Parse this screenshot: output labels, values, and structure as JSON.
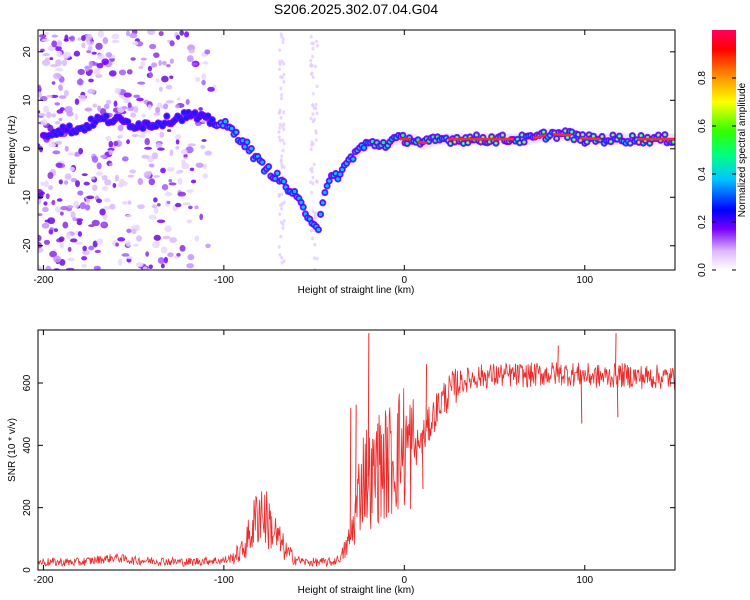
{
  "title": "S206.2025.302.07.04.G04",
  "chart_data": [
    {
      "type": "heatmap",
      "xlabel": "Height of straight line (km)",
      "ylabel": "Frequency (Hz)",
      "xlim": [
        -203,
        150
      ],
      "ylim": [
        -25,
        24.5
      ],
      "xticks": [
        -200,
        -100,
        0,
        100
      ],
      "yticks": [
        -20,
        -10,
        0,
        10,
        20
      ],
      "ridge": {
        "x": [
          -200,
          -190,
          -180,
          -170,
          -160,
          -150,
          -140,
          -130,
          -120,
          -110,
          -100,
          -90,
          -80,
          -70,
          -60,
          -55,
          -50,
          -48,
          -45,
          -40,
          -35,
          -30,
          -25,
          -20,
          -15,
          -10,
          -5,
          0,
          5,
          10,
          20,
          30,
          40,
          50,
          60,
          70,
          80,
          90,
          100,
          110,
          120,
          130,
          140,
          150
        ],
        "y": [
          3,
          4,
          4,
          6,
          6,
          5,
          5,
          6,
          7,
          6,
          5,
          2,
          -3,
          -6,
          -10,
          -13,
          -15,
          -17,
          -10,
          -6,
          -5,
          -2,
          0,
          1,
          1,
          1,
          2,
          2,
          2,
          1,
          2,
          2,
          2,
          2,
          2,
          2,
          3,
          3,
          2,
          2,
          2,
          2,
          2,
          2
        ]
      },
      "noise_region_km": [
        -203,
        -105
      ],
      "colorbar": {
        "label": "Normalized spectral amplitude",
        "range": [
          0,
          1
        ],
        "ticks": [
          "0.0",
          "0.2",
          "0.4",
          "0.6",
          "0.8"
        ]
      }
    },
    {
      "type": "line",
      "xlabel": "Height of straight line (km)",
      "ylabel": "SNR (10 * v/v)",
      "xlim": [
        -203,
        150
      ],
      "ylim": [
        0,
        770
      ],
      "xticks": [
        -200,
        -100,
        0,
        100
      ],
      "yticks": [
        0,
        200,
        400,
        600
      ],
      "color": "#ee2b2b",
      "series": [
        {
          "name": "SNR",
          "x": [
            -203,
            -180,
            -160,
            -150,
            -140,
            -120,
            -110,
            -100,
            -95,
            -90,
            -85,
            -80,
            -75,
            -70,
            -65,
            -60,
            -55,
            -50,
            -45,
            -40,
            -35,
            -30,
            -28,
            -25,
            -22,
            -20,
            -18,
            -15,
            -10,
            -5,
            0,
            5,
            10,
            15,
            20,
            25,
            30,
            40,
            50,
            60,
            70,
            80,
            90,
            100,
            110,
            120,
            130,
            140,
            150
          ],
          "y": [
            25,
            25,
            40,
            30,
            30,
            25,
            30,
            30,
            40,
            60,
            120,
            200,
            150,
            100,
            55,
            35,
            25,
            25,
            25,
            25,
            40,
            100,
            150,
            250,
            320,
            300,
            280,
            330,
            340,
            370,
            400,
            380,
            420,
            480,
            540,
            570,
            600,
            620,
            625,
            625,
            625,
            630,
            630,
            625,
            620,
            625,
            620,
            620,
            615
          ],
          "spikes": [
            {
              "x": 117,
              "y": 760
            },
            {
              "x": 85,
              "y": 720
            },
            {
              "x": 98,
              "y": 470
            },
            {
              "x": 118,
              "y": 490
            },
            {
              "x": -20,
              "y": 760
            },
            {
              "x": -30,
              "y": 520
            },
            {
              "x": -27,
              "y": 530
            },
            {
              "x": 12,
              "y": 660
            },
            {
              "x": 10,
              "y": 260
            },
            {
              "x": -15,
              "y": 470
            },
            {
              "x": -10,
              "y": 290
            }
          ]
        }
      ]
    }
  ]
}
